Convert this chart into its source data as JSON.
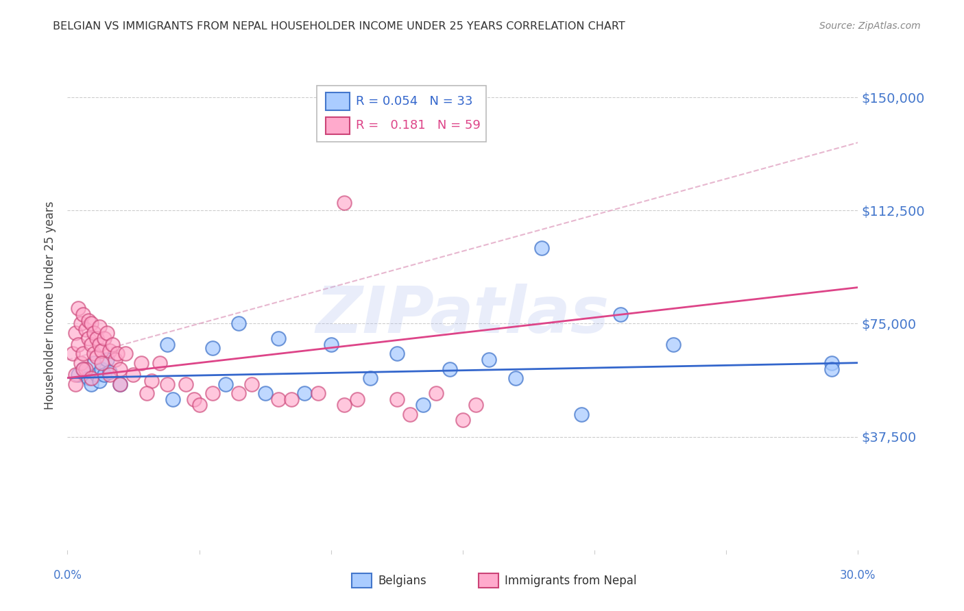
{
  "title": "BELGIAN VS IMMIGRANTS FROM NEPAL HOUSEHOLDER INCOME UNDER 25 YEARS CORRELATION CHART",
  "source": "Source: ZipAtlas.com",
  "ylabel": "Householder Income Under 25 years",
  "xmin": 0.0,
  "xmax": 0.3,
  "ymin": 0,
  "ymax": 162000,
  "watermark": "ZIPatlas",
  "legend_blue_r": "0.054",
  "legend_blue_n": "33",
  "legend_pink_r": "0.181",
  "legend_pink_n": "59",
  "legend_label_blue": "Belgians",
  "legend_label_pink": "Immigrants from Nepal",
  "blue_fill": "#aaccff",
  "blue_edge": "#4477cc",
  "pink_fill": "#ffaacc",
  "pink_edge": "#cc4477",
  "blue_line": "#3366cc",
  "pink_line": "#dd4488",
  "pink_dash": "#dd99bb",
  "grid_color": "#cccccc",
  "background_color": "#ffffff",
  "title_color": "#333333",
  "axis_color": "#4477cc",
  "ytick_color": "#4477cc",
  "blue_x": [
    0.004,
    0.006,
    0.008,
    0.009,
    0.01,
    0.011,
    0.012,
    0.013,
    0.014,
    0.015,
    0.016,
    0.02,
    0.038,
    0.055,
    0.065,
    0.08,
    0.1,
    0.125,
    0.16,
    0.18,
    0.21,
    0.23,
    0.29,
    0.06,
    0.09,
    0.115,
    0.145,
    0.17,
    0.04,
    0.075,
    0.135,
    0.195,
    0.29
  ],
  "blue_y": [
    58000,
    60000,
    57000,
    55000,
    62000,
    58000,
    56000,
    60000,
    58000,
    63000,
    59000,
    55000,
    68000,
    67000,
    75000,
    70000,
    68000,
    65000,
    63000,
    100000,
    78000,
    68000,
    62000,
    55000,
    52000,
    57000,
    60000,
    57000,
    50000,
    52000,
    48000,
    45000,
    60000
  ],
  "pink_x": [
    0.002,
    0.003,
    0.003,
    0.004,
    0.004,
    0.005,
    0.005,
    0.006,
    0.006,
    0.007,
    0.007,
    0.008,
    0.008,
    0.009,
    0.009,
    0.01,
    0.01,
    0.011,
    0.011,
    0.012,
    0.012,
    0.013,
    0.014,
    0.015,
    0.016,
    0.017,
    0.018,
    0.019,
    0.02,
    0.022,
    0.025,
    0.028,
    0.032,
    0.038,
    0.045,
    0.055,
    0.065,
    0.08,
    0.095,
    0.11,
    0.125,
    0.14,
    0.155,
    0.035,
    0.048,
    0.07,
    0.003,
    0.006,
    0.009,
    0.013,
    0.016,
    0.02,
    0.03,
    0.05,
    0.085,
    0.105,
    0.13,
    0.15,
    0.105
  ],
  "pink_y": [
    65000,
    72000,
    58000,
    68000,
    80000,
    75000,
    62000,
    78000,
    65000,
    73000,
    60000,
    70000,
    76000,
    68000,
    75000,
    72000,
    65000,
    70000,
    64000,
    68000,
    74000,
    66000,
    70000,
    72000,
    66000,
    68000,
    63000,
    65000,
    60000,
    65000,
    58000,
    62000,
    56000,
    55000,
    55000,
    52000,
    52000,
    50000,
    52000,
    50000,
    50000,
    52000,
    48000,
    62000,
    50000,
    55000,
    55000,
    60000,
    57000,
    62000,
    58000,
    55000,
    52000,
    48000,
    50000,
    48000,
    45000,
    43000,
    115000
  ]
}
